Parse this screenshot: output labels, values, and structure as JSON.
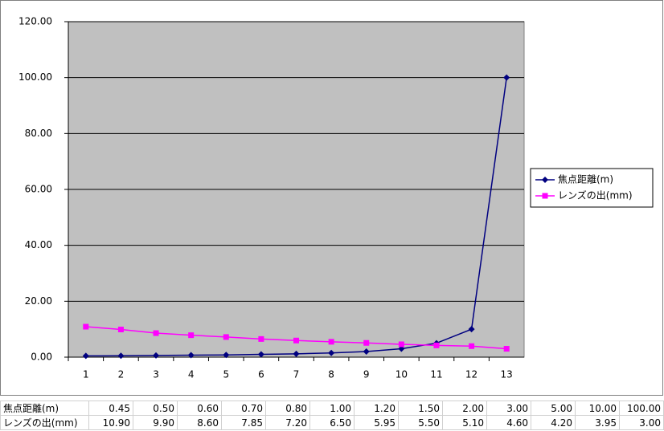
{
  "chart_data": {
    "type": "line",
    "categories": [
      "1",
      "2",
      "3",
      "4",
      "5",
      "6",
      "7",
      "8",
      "9",
      "10",
      "11",
      "12",
      "13"
    ],
    "series": [
      {
        "name": "焦点距離(m)",
        "color": "#000080",
        "marker": "diamond",
        "values": [
          0.45,
          0.5,
          0.6,
          0.7,
          0.8,
          1.0,
          1.2,
          1.5,
          2.0,
          3.0,
          5.0,
          10.0,
          100.0
        ]
      },
      {
        "name": "レンズの出(mm)",
        "color": "#ff00ff",
        "marker": "square",
        "values": [
          10.9,
          9.9,
          8.6,
          7.85,
          7.2,
          6.5,
          5.95,
          5.5,
          5.1,
          4.6,
          4.2,
          3.95,
          3.0
        ]
      }
    ],
    "ylim": [
      0,
      120
    ],
    "yticks": [
      {
        "value": 0,
        "label": "0.00"
      },
      {
        "value": 20,
        "label": "20.00"
      },
      {
        "value": 40,
        "label": "40.00"
      },
      {
        "value": 60,
        "label": "60.00"
      },
      {
        "value": 80,
        "label": "80.00"
      },
      {
        "value": 100,
        "label": "100.00"
      },
      {
        "value": 120,
        "label": "120.00"
      }
    ],
    "grid": true,
    "legend": "right"
  },
  "table": {
    "rows": [
      [
        "焦点距離(m)",
        "0.45",
        "0.50",
        "0.60",
        "0.70",
        "0.80",
        "1.00",
        "1.20",
        "1.50",
        "2.00",
        "3.00",
        "5.00",
        "10.00",
        "100.00"
      ],
      [
        "レンズの出(mm)",
        "10.90",
        "9.90",
        "8.60",
        "7.85",
        "7.20",
        "6.50",
        "5.95",
        "5.50",
        "5.10",
        "4.60",
        "4.20",
        "3.95",
        "3.00"
      ]
    ]
  }
}
